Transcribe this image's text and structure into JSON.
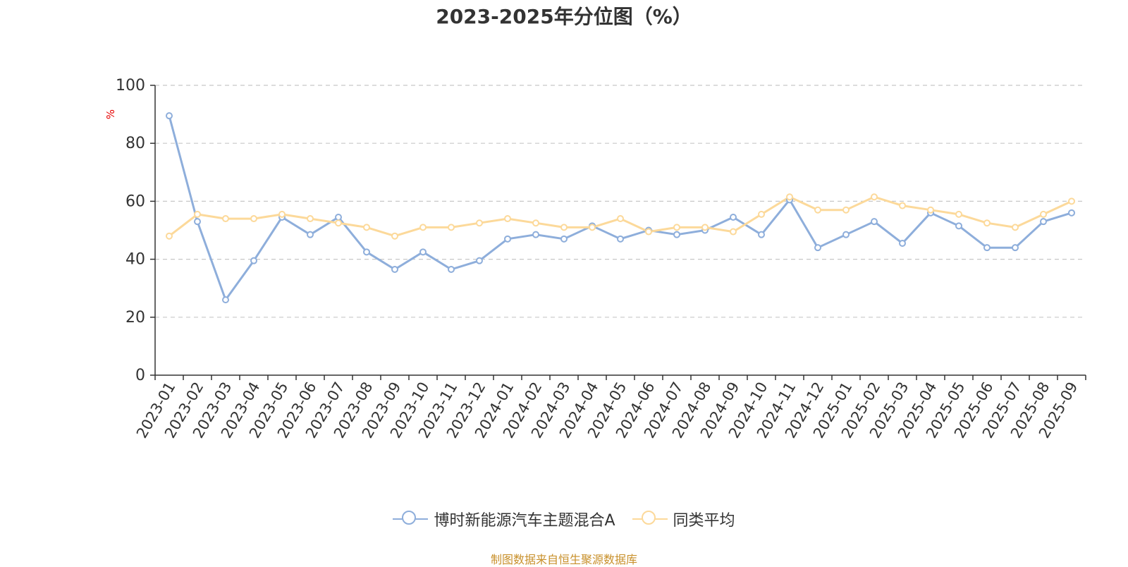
{
  "title": "2023-2025年分位图（%）",
  "source_note": "制图数据来自恒生聚源数据库",
  "colors": {
    "series_a": "#8eaedb",
    "series_b": "#fcd99a",
    "grid": "#c8c8c8",
    "axis": "#333333",
    "unit": "#e60000"
  },
  "legend": [
    {
      "label": "博时新能源汽车主题混合A",
      "color": "#8eaedb"
    },
    {
      "label": "同类平均",
      "color": "#fcd99a"
    }
  ],
  "chart_data": {
    "type": "line",
    "title": "2023-2025年分位图（%）",
    "ylabel": "%",
    "ylim": [
      0,
      100
    ],
    "yticks": [
      0,
      20,
      40,
      60,
      80,
      100
    ],
    "grid": true,
    "legend_position": "bottom",
    "categories": [
      "2023-01",
      "2023-02",
      "2023-03",
      "2023-04",
      "2023-05",
      "2023-06",
      "2023-07",
      "2023-08",
      "2023-09",
      "2023-10",
      "2023-11",
      "2023-12",
      "2024-01",
      "2024-02",
      "2024-03",
      "2024-04",
      "2024-05",
      "2024-06",
      "2024-07",
      "2024-08",
      "2024-09",
      "2024-10",
      "2024-11",
      "2024-12",
      "2025-01",
      "2025-02",
      "2025-03",
      "2025-04",
      "2025-05",
      "2025-06",
      "2025-07",
      "2025-08",
      "2025-09"
    ],
    "series": [
      {
        "name": "博时新能源汽车主题混合A",
        "values": [
          89.5,
          53.0,
          26.0,
          39.5,
          54.5,
          48.5,
          54.5,
          42.5,
          36.5,
          42.5,
          36.5,
          39.5,
          47.0,
          48.5,
          47.0,
          51.5,
          47.0,
          50.0,
          48.5,
          50.0,
          54.5,
          48.5,
          60.5,
          44.0,
          48.5,
          53.0,
          45.5,
          56.0,
          51.5,
          44.0,
          44.0,
          53.0,
          56.0
        ]
      },
      {
        "name": "同类平均",
        "values": [
          48.0,
          55.5,
          54.0,
          54.0,
          55.5,
          54.0,
          52.5,
          51.0,
          48.0,
          51.0,
          51.0,
          52.5,
          54.0,
          52.5,
          51.0,
          51.0,
          54.0,
          49.5,
          51.0,
          51.0,
          49.5,
          55.5,
          61.5,
          57.0,
          57.0,
          61.5,
          58.5,
          57.0,
          55.5,
          52.5,
          51.0,
          55.5,
          60.0
        ]
      }
    ]
  }
}
